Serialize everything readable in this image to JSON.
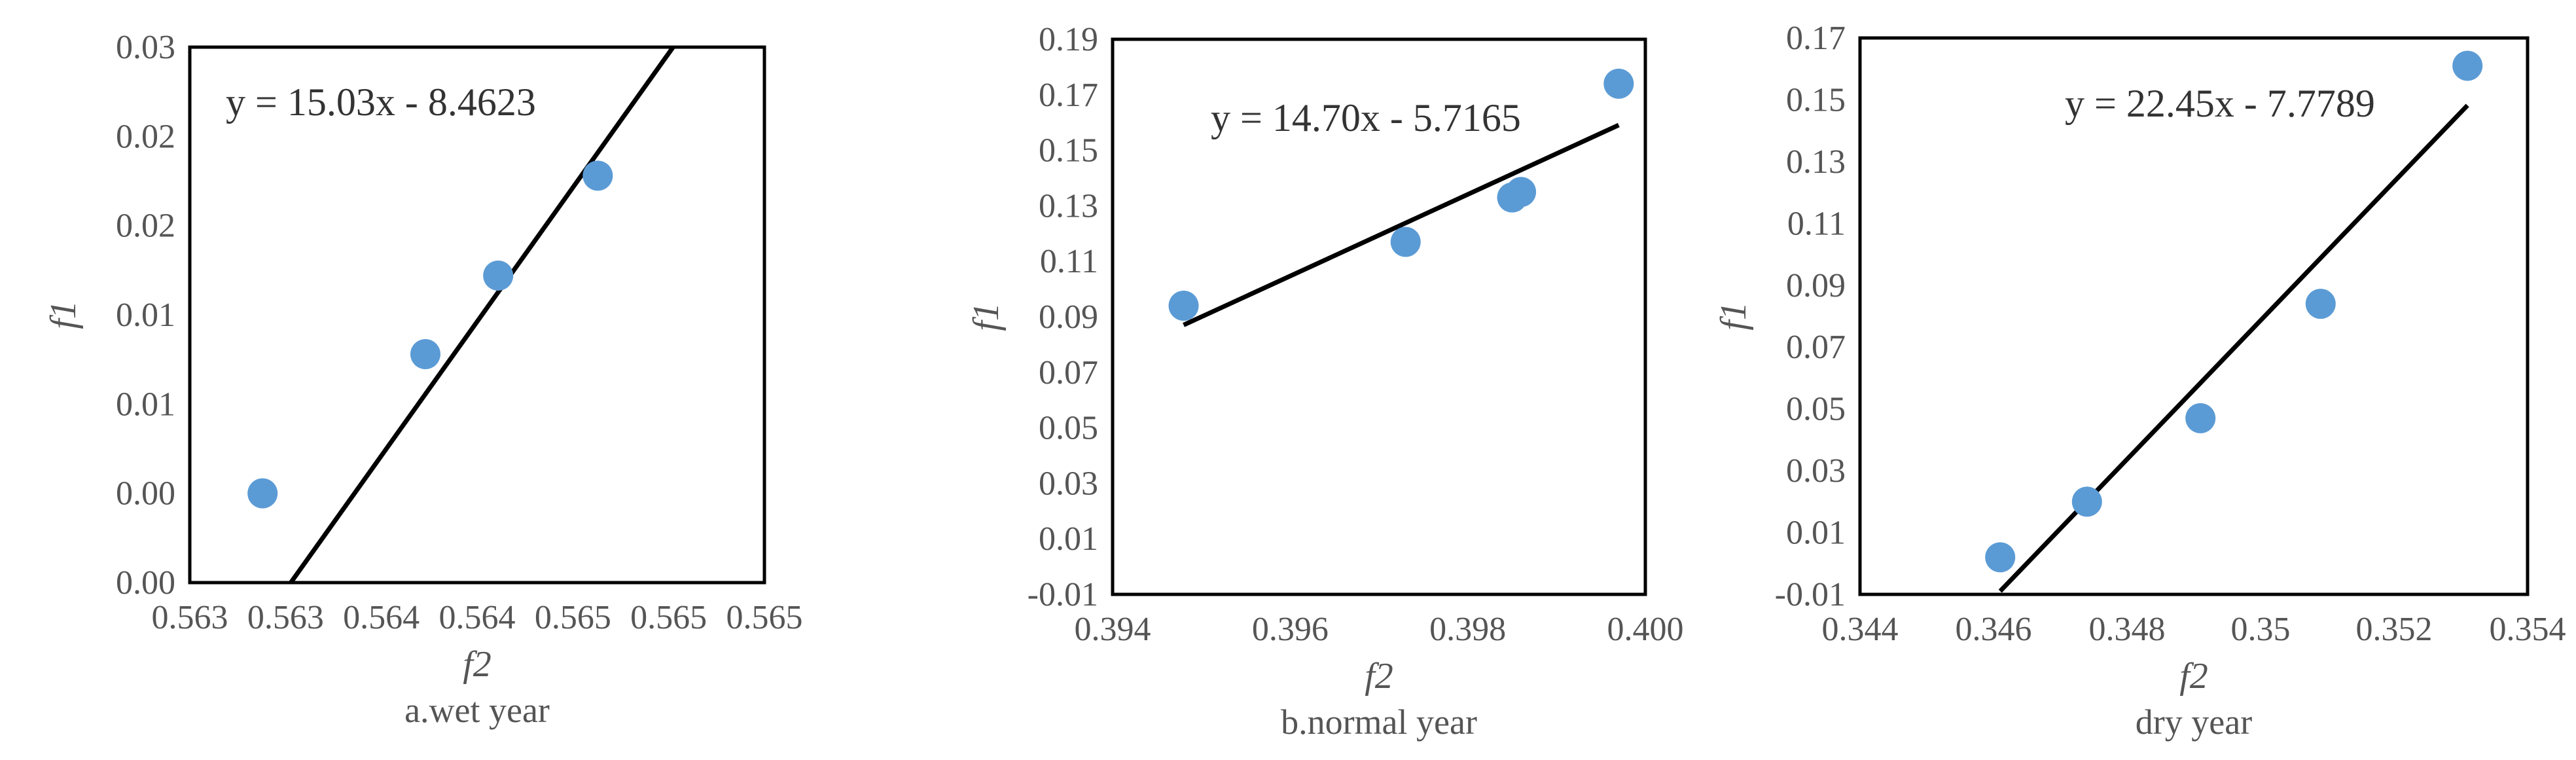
{
  "chart_data": [
    {
      "type": "scatter",
      "xlabel": "f2",
      "ylabel": "f1",
      "caption": "a.wet year",
      "equation": "y = 15.03x - 8.4623",
      "xlim": [
        0.5625,
        0.5655
      ],
      "ylim": [
        0.0,
        0.03
      ],
      "x_ticks": [
        0.5625,
        0.563,
        0.5635,
        0.564,
        0.5645,
        0.565,
        0.5655
      ],
      "x_tick_labels": [
        "0.563",
        "0.563",
        "0.564",
        "0.564",
        "0.565",
        "0.565",
        "0.565"
      ],
      "y_ticks": [
        0.0,
        0.005,
        0.01,
        0.015,
        0.02,
        0.025,
        0.03
      ],
      "y_tick_labels": [
        "0.00",
        "0.00",
        "0.01",
        "0.01",
        "0.02",
        "0.02",
        "0.03"
      ],
      "points": [
        {
          "x": 0.56288,
          "y": 0.005
        },
        {
          "x": 0.56373,
          "y": 0.0128
        },
        {
          "x": 0.56411,
          "y": 0.0172
        },
        {
          "x": 0.56463,
          "y": 0.0228
        }
      ],
      "trendline": {
        "slope": 15.03,
        "intercept": -8.4623,
        "x_range": [
          0.56288,
          0.56585
        ]
      },
      "grid": false,
      "legend": "none"
    },
    {
      "type": "scatter",
      "xlabel": "f2",
      "ylabel": "f1",
      "caption": "b.normal year",
      "equation": "y = 14.70x - 5.7165",
      "xlim": [
        0.394,
        0.4
      ],
      "ylim": [
        -0.01,
        0.19
      ],
      "x_ticks": [
        0.394,
        0.396,
        0.398,
        0.4
      ],
      "x_tick_labels": [
        "0.394",
        "0.396",
        "0.398",
        "0.400"
      ],
      "y_ticks": [
        -0.01,
        0.01,
        0.03,
        0.05,
        0.07,
        0.09,
        0.11,
        0.13,
        0.15,
        0.17,
        0.19
      ],
      "y_tick_labels": [
        "-0.01",
        "0.01",
        "0.03",
        "0.05",
        "0.07",
        "0.09",
        "0.11",
        "0.13",
        "0.15",
        "0.17",
        "0.19"
      ],
      "points": [
        {
          "x": 0.3948,
          "y": 0.094
        },
        {
          "x": 0.3973,
          "y": 0.117
        },
        {
          "x": 0.3985,
          "y": 0.133
        },
        {
          "x": 0.3986,
          "y": 0.135
        },
        {
          "x": 0.3997,
          "y": 0.174
        }
      ],
      "trendline": {
        "slope": 14.7,
        "intercept": -5.7165,
        "x_range": [
          0.3948,
          0.3997
        ]
      },
      "grid": false,
      "legend": "none"
    },
    {
      "type": "scatter",
      "xlabel": "f2",
      "ylabel": "f1",
      "caption": "dry year",
      "equation": "y = 22.45x - 7.7789",
      "xlim": [
        0.344,
        0.354
      ],
      "ylim": [
        -0.01,
        0.17
      ],
      "x_ticks": [
        0.344,
        0.346,
        0.348,
        0.35,
        0.352,
        0.354
      ],
      "x_tick_labels": [
        "0.344",
        "0.346",
        "0.348",
        "0.35",
        "0.352",
        "0.354"
      ],
      "y_ticks": [
        -0.01,
        0.01,
        0.03,
        0.05,
        0.07,
        0.09,
        0.11,
        0.13,
        0.15,
        0.17
      ],
      "y_tick_labels": [
        "-0.01",
        "0.01",
        "0.03",
        "0.05",
        "0.07",
        "0.09",
        "0.11",
        "0.13",
        "0.15",
        "0.17"
      ],
      "points": [
        {
          "x": 0.3461,
          "y": 0.002
        },
        {
          "x": 0.3474,
          "y": 0.02
        },
        {
          "x": 0.3491,
          "y": 0.047
        },
        {
          "x": 0.3509,
          "y": 0.084
        },
        {
          "x": 0.3531,
          "y": 0.161
        }
      ],
      "trendline": {
        "slope": 22.45,
        "intercept": -7.7789,
        "x_range": [
          0.3461,
          0.3531
        ]
      },
      "grid": false,
      "legend": "none"
    }
  ],
  "colors": {
    "point": "#5b9bd5",
    "trendline": "#000000",
    "frame": "#000000",
    "text": "#555555"
  }
}
